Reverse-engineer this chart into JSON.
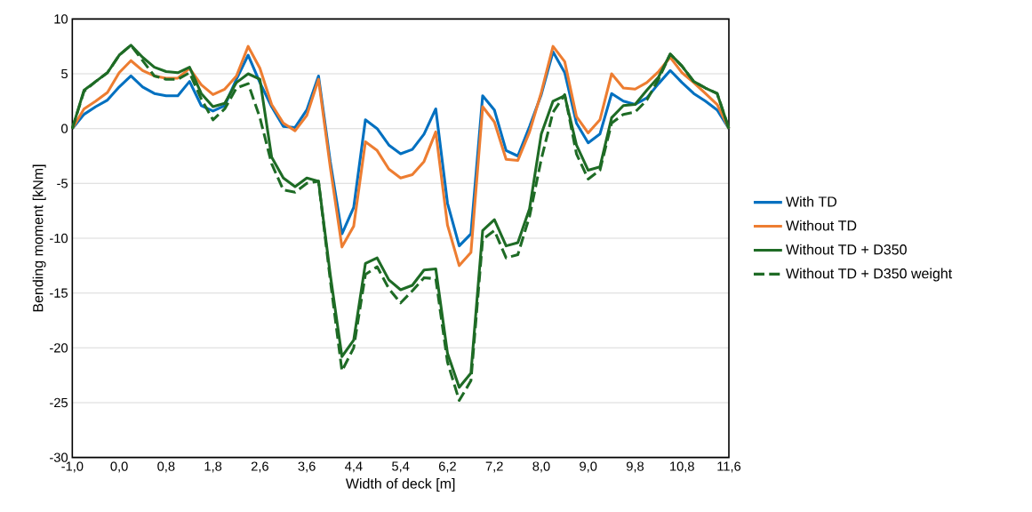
{
  "chart_data": {
    "type": "line",
    "xlabel": "Width of deck [m]",
    "ylabel": "Bending moment [kNm]",
    "categories": [
      "-1,0",
      null,
      null,
      null,
      "0,0",
      null,
      null,
      null,
      "0,8",
      null,
      null,
      null,
      "1,8",
      null,
      null,
      null,
      "2,6",
      null,
      null,
      null,
      "3,6",
      null,
      null,
      null,
      "4,4",
      null,
      null,
      null,
      "5,4",
      null,
      null,
      null,
      "6,2",
      null,
      null,
      null,
      "7,2",
      null,
      null,
      null,
      "8,0",
      null,
      null,
      null,
      "9,0",
      null,
      null,
      null,
      "9,8",
      null,
      null,
      null,
      "10,8",
      null,
      null,
      null,
      "11,6"
    ],
    "ylim": [
      -30,
      10
    ],
    "yticks": [
      -30,
      -25,
      -20,
      -15,
      -10,
      -5,
      0,
      5,
      10
    ],
    "grid": "y",
    "legend": "right",
    "series": [
      {
        "name": "With TD",
        "color": "#0070c0",
        "line_style": "solid",
        "values": [
          0,
          1.3,
          2.0,
          2.6,
          3.8,
          4.8,
          3.8,
          3.2,
          3.0,
          3.0,
          4.3,
          2.1,
          1.6,
          2.1,
          4.5,
          6.7,
          4.2,
          2.0,
          0.2,
          0.1,
          1.7,
          4.8,
          -3.0,
          -9.6,
          -7.2,
          0.8,
          0,
          -1.5,
          -2.3,
          -1.9,
          -0.5,
          1.8,
          -6.8,
          -10.7,
          -9.6,
          3.0,
          1.7,
          -2.0,
          -2.5,
          0.2,
          3.1,
          7.0,
          5.1,
          0.5,
          -1.3,
          -0.5,
          3.2,
          2.5,
          2.2,
          2.8,
          4.1,
          5.3,
          4.2,
          3.2,
          2.5,
          1.7,
          0
        ]
      },
      {
        "name": "Without TD",
        "color": "#ed7d31",
        "line_style": "solid",
        "values": [
          0,
          1.8,
          2.5,
          3.3,
          5.1,
          6.2,
          5.3,
          4.8,
          4.6,
          4.6,
          5.5,
          4.0,
          3.1,
          3.6,
          4.8,
          7.5,
          5.5,
          2.2,
          0.5,
          -0.2,
          1.2,
          4.5,
          -3.5,
          -10.8,
          -8.9,
          -1.2,
          -2.0,
          -3.7,
          -4.5,
          -4.2,
          -3.0,
          -0.3,
          -8.8,
          -12.5,
          -11.3,
          2.0,
          0.6,
          -2.8,
          -2.9,
          -0.3,
          3.3,
          7.5,
          6.1,
          1.1,
          -0.4,
          0.8,
          5.0,
          3.7,
          3.6,
          4.2,
          5.2,
          6.5,
          5.1,
          4.2,
          3.2,
          2.2,
          0
        ]
      },
      {
        "name": "Without TD + D350",
        "color": "#1e6b25",
        "line_style": "solid",
        "values": [
          0,
          3.5,
          4.3,
          5.1,
          6.7,
          7.6,
          6.5,
          5.6,
          5.2,
          5.1,
          5.6,
          3.2,
          2.0,
          2.3,
          4.2,
          5.0,
          4.5,
          -2.6,
          -4.5,
          -5.3,
          -4.5,
          -4.8,
          -13.3,
          -20.8,
          -19.3,
          -12.3,
          -11.8,
          -13.8,
          -14.7,
          -14.3,
          -12.9,
          -12.8,
          -20.5,
          -23.6,
          -22.3,
          -9.3,
          -8.3,
          -10.7,
          -10.4,
          -7.3,
          -0.5,
          2.5,
          3.0,
          -1.5,
          -3.8,
          -3.5,
          1.0,
          2.1,
          2.2,
          3.5,
          4.7,
          6.8,
          5.7,
          4.3,
          3.7,
          3.2,
          0
        ]
      },
      {
        "name": "Without TD + D350 weight",
        "color": "#1e6b25",
        "line_style": "dashed",
        "values": [
          0,
          3.4,
          4.3,
          5.1,
          6.7,
          7.6,
          6.2,
          4.8,
          4.5,
          4.5,
          5.1,
          2.7,
          0.8,
          1.8,
          3.7,
          4.1,
          1.0,
          -3.2,
          -5.6,
          -5.8,
          -5.0,
          -4.8,
          -13.8,
          -22.1,
          -20.0,
          -13.3,
          -12.6,
          -14.6,
          -15.9,
          -14.8,
          -13.6,
          -13.7,
          -21.3,
          -24.8,
          -23.0,
          -10.1,
          -9.3,
          -11.8,
          -11.5,
          -8.0,
          -2.8,
          1.5,
          3.1,
          -2.3,
          -4.6,
          -3.8,
          0.5,
          1.3,
          1.5,
          2.6,
          4.5,
          6.8,
          5.7,
          4.3,
          3.7,
          3.2,
          0
        ]
      }
    ]
  }
}
